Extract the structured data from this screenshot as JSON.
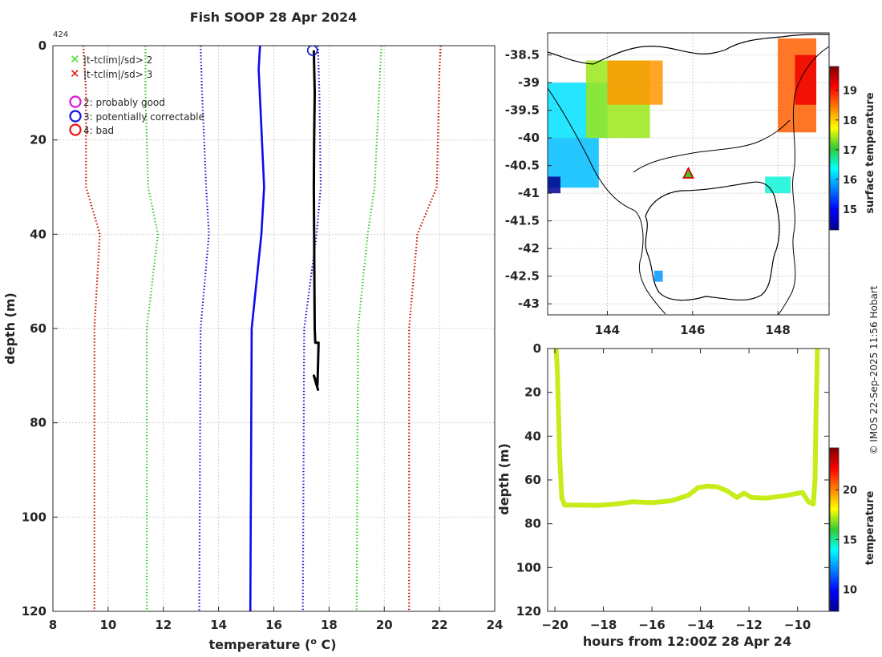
{
  "figure": {
    "title": "Fish SOOP 28 Apr 2024",
    "profile_id": "424",
    "credit": "© IMOS 22-Sep-2025 11:56 Hobart"
  },
  "legend": {
    "items": [
      {
        "marker": "x",
        "color": "#44dd22",
        "label": "|t-tclim|/sd> 2"
      },
      {
        "marker": "x",
        "color": "#dd1111",
        "label": "|t-tclim|/sd> 3"
      },
      {
        "marker": "circle",
        "color": "#dd11dd",
        "label": "2: probably good"
      },
      {
        "marker": "circle",
        "color": "#1111dd",
        "label": "3: potentially correctable"
      },
      {
        "marker": "circle",
        "color": "#ee1111",
        "label": "4: bad"
      }
    ]
  },
  "chart_data": [
    {
      "id": "profile",
      "type": "line",
      "title": "Fish SOOP 28 Apr 2024",
      "xlabel": "temperature (° C)",
      "ylabel": "depth (m)",
      "xlim": [
        8,
        24
      ],
      "ylim": [
        0,
        120
      ],
      "y_inverted": true,
      "grid": true,
      "xticks": [
        8,
        10,
        12,
        14,
        16,
        18,
        20,
        22,
        24
      ],
      "yticks": [
        0,
        20,
        40,
        60,
        80,
        100,
        120
      ],
      "series": [
        {
          "name": "climatology mean",
          "style": "solid",
          "color": "#0a0af0",
          "points": [
            [
              15.5,
              0
            ],
            [
              15.45,
              5
            ],
            [
              15.65,
              30
            ],
            [
              15.55,
              40
            ],
            [
              15.2,
              60
            ],
            [
              15.15,
              120
            ]
          ]
        },
        {
          "name": "clim -1 sd",
          "style": "dotted",
          "color": "#1a1ad0",
          "points": [
            [
              13.35,
              0
            ],
            [
              13.4,
              10
            ],
            [
              13.55,
              30
            ],
            [
              13.65,
              40
            ],
            [
              13.35,
              60
            ],
            [
              13.3,
              120
            ]
          ]
        },
        {
          "name": "clim +1 sd",
          "style": "dotted",
          "color": "#1a1ad0",
          "points": [
            [
              17.6,
              0
            ],
            [
              17.65,
              10
            ],
            [
              17.7,
              30
            ],
            [
              17.55,
              40
            ],
            [
              17.1,
              60
            ],
            [
              17.05,
              120
            ]
          ]
        },
        {
          "name": "clim -2 sd",
          "style": "dotted",
          "color": "#33cc22",
          "points": [
            [
              11.35,
              0
            ],
            [
              11.35,
              10
            ],
            [
              11.45,
              30
            ],
            [
              11.8,
              40
            ],
            [
              11.4,
              60
            ],
            [
              11.4,
              120
            ]
          ]
        },
        {
          "name": "clim +2 sd",
          "style": "dotted",
          "color": "#33cc22",
          "points": [
            [
              19.9,
              0
            ],
            [
              19.85,
              5
            ],
            [
              19.65,
              30
            ],
            [
              19.4,
              40
            ],
            [
              19.05,
              60
            ],
            [
              19.0,
              120
            ]
          ]
        },
        {
          "name": "clim -3 sd",
          "style": "dotted",
          "color": "#cc1100",
          "points": [
            [
              9.1,
              0
            ],
            [
              9.2,
              10
            ],
            [
              9.2,
              30
            ],
            [
              9.7,
              40
            ],
            [
              9.5,
              60
            ],
            [
              9.5,
              120
            ]
          ]
        },
        {
          "name": "clim +3 sd",
          "style": "dotted",
          "color": "#cc1100",
          "points": [
            [
              22.05,
              0
            ],
            [
              22.0,
              5
            ],
            [
              21.9,
              30
            ],
            [
              21.2,
              40
            ],
            [
              20.9,
              60
            ],
            [
              20.9,
              120
            ]
          ]
        },
        {
          "name": "measured profile",
          "style": "solid",
          "color": "#000000",
          "points": [
            [
              17.45,
              1
            ],
            [
              17.48,
              10
            ],
            [
              17.46,
              20
            ],
            [
              17.45,
              30
            ],
            [
              17.46,
              40
            ],
            [
              17.47,
              50
            ],
            [
              17.48,
              60
            ],
            [
              17.5,
              63
            ],
            [
              17.62,
              63
            ],
            [
              17.6,
              68
            ],
            [
              17.58,
              72
            ],
            [
              17.45,
              70
            ],
            [
              17.6,
              73
            ],
            [
              17.5,
              71
            ]
          ]
        }
      ],
      "flag_marker": {
        "label": "3: potentially correctable",
        "color": "#1111cc",
        "x": 17.4,
        "y": 1
      }
    },
    {
      "id": "sst_map",
      "type": "heatmap",
      "title": "",
      "xlim": [
        142.6,
        149.2
      ],
      "ylim": [
        -43.2,
        -38.1
      ],
      "xticks": [
        144,
        146,
        148
      ],
      "yticks": [
        -38.5,
        -39,
        -39.5,
        -40,
        -40.5,
        -41,
        -41.5,
        -42,
        -42.5,
        -43
      ],
      "grid": true,
      "colorbar": {
        "label": "surface temperature",
        "range": [
          14.3,
          19.8
        ],
        "ticks": [
          15,
          16,
          17,
          18,
          19
        ]
      },
      "marker": {
        "type": "triangle",
        "lon": 145.9,
        "lat": -40.65,
        "edge_color": "#dd0000",
        "fill_color": "#33cc33"
      },
      "sst_patches": [
        {
          "lon": [
            142.6,
            144.0
          ],
          "lat": [
            -40.0,
            -39.0
          ],
          "value": 16.2
        },
        {
          "lon": [
            142.6,
            143.8
          ],
          "lat": [
            -40.9,
            -40.0
          ],
          "value": 16.0
        },
        {
          "lon": [
            143.5,
            145.0
          ],
          "lat": [
            -40.0,
            -38.6
          ],
          "value": 17.4
        },
        {
          "lon": [
            144.0,
            145.3
          ],
          "lat": [
            -39.4,
            -38.6
          ],
          "value": 18.3
        },
        {
          "lon": [
            142.6,
            142.9
          ],
          "lat": [
            -41.0,
            -40.7
          ],
          "value": 13.8
        },
        {
          "lon": [
            148.0,
            148.9
          ],
          "lat": [
            -39.9,
            -38.2
          ],
          "value": 18.6
        },
        {
          "lon": [
            148.4,
            148.9
          ],
          "lat": [
            -39.4,
            -38.5
          ],
          "value": 19.2
        },
        {
          "lon": [
            147.7,
            148.3
          ],
          "lat": [
            -41.0,
            -40.7
          ],
          "value": 16.5
        },
        {
          "lon": [
            145.1,
            145.3
          ],
          "lat": [
            -42.6,
            -42.4
          ],
          "value": 15.8
        }
      ]
    },
    {
      "id": "track",
      "type": "scatter",
      "title": "",
      "xlabel": "hours from 12:00Z 28 Apr 24",
      "ylabel": "depth (m)",
      "xlim": [
        -20.3,
        -8.7
      ],
      "ylim": [
        0,
        120
      ],
      "y_inverted": true,
      "xticks": [
        -20,
        -18,
        -16,
        -14,
        -12,
        -10
      ],
      "yticks": [
        0,
        20,
        40,
        60,
        80,
        100,
        120
      ],
      "colorbar": {
        "label": "temperature",
        "range": [
          7.8,
          24.2
        ],
        "ticks": [
          10,
          15,
          20
        ]
      },
      "series": [
        {
          "name": "temperature track",
          "color": "#c6ec1a",
          "points": [
            [
              -19.95,
              0
            ],
            [
              -19.9,
              10
            ],
            [
              -19.85,
              30
            ],
            [
              -19.8,
              50
            ],
            [
              -19.72,
              68
            ],
            [
              -19.6,
              71.5
            ],
            [
              -19,
              71.5
            ],
            [
              -18.2,
              71.6
            ],
            [
              -17.5,
              71
            ],
            [
              -16.8,
              70
            ],
            [
              -16,
              70.4
            ],
            [
              -15.2,
              69.5
            ],
            [
              -14.5,
              67
            ],
            [
              -14.1,
              63.5
            ],
            [
              -13.7,
              62.8
            ],
            [
              -13.3,
              63.2
            ],
            [
              -12.9,
              65
            ],
            [
              -12.5,
              68
            ],
            [
              -12.2,
              66
            ],
            [
              -11.9,
              68
            ],
            [
              -11.3,
              68.3
            ],
            [
              -10.5,
              67.2
            ],
            [
              -9.8,
              65.7
            ],
            [
              -9.55,
              70
            ],
            [
              -9.35,
              71
            ],
            [
              -9.28,
              60
            ],
            [
              -9.24,
              30
            ],
            [
              -9.2,
              10
            ],
            [
              -9.18,
              0
            ]
          ]
        }
      ]
    }
  ]
}
